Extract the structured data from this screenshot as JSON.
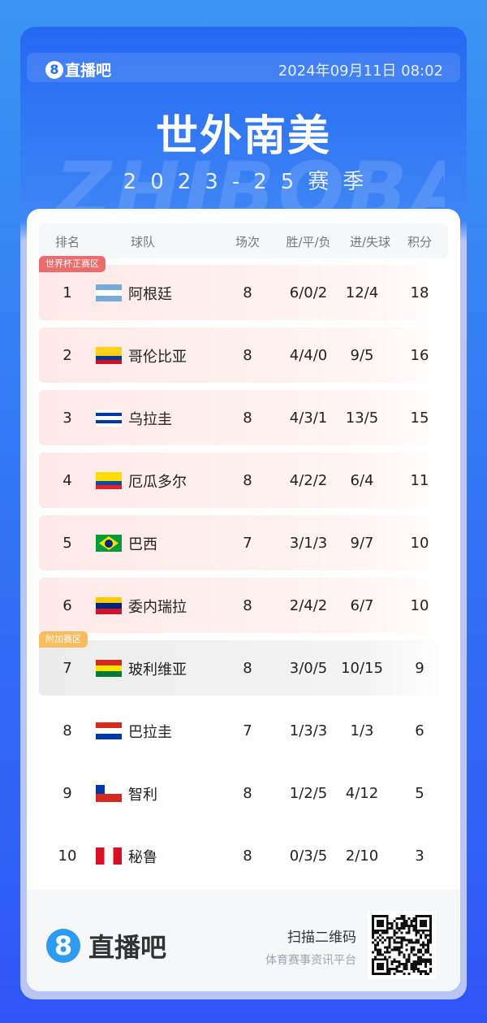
{
  "header": {
    "brand": "直播吧",
    "brand_icon": "8",
    "datetime": "2024年09月11日 08:02",
    "title": "世外南美",
    "season": "2023-25赛季",
    "watermark": "ZHIBOBA"
  },
  "table": {
    "columns": [
      "排名",
      "球队",
      "场次",
      "胜/平/负",
      "进/失球",
      "积分"
    ],
    "zones": {
      "world_cup": {
        "label": "世界杯正赛区",
        "color": "#ee6b6b"
      },
      "playoff": {
        "label": "附加赛区",
        "color": "#f9bc5c"
      }
    },
    "rows": [
      {
        "rank": "1",
        "team": "阿根廷",
        "played": "8",
        "wdl": "6/0/2",
        "goals": "12/4",
        "points": "18",
        "zone": "world_cup",
        "flag": [
          "#75aadb",
          "#ffffff",
          "#75aadb"
        ]
      },
      {
        "rank": "2",
        "team": "哥伦比亚",
        "played": "8",
        "wdl": "4/4/0",
        "goals": "9/5",
        "points": "16",
        "zone": "world_cup",
        "flag": [
          "#fcd116",
          "#fcd116",
          "#003893",
          "#ce1126"
        ]
      },
      {
        "rank": "3",
        "team": "乌拉圭",
        "played": "8",
        "wdl": "4/3/1",
        "goals": "13/5",
        "points": "15",
        "zone": "world_cup",
        "flag": [
          "#ffffff",
          "#0038a8",
          "#ffffff",
          "#0038a8",
          "#ffffff"
        ]
      },
      {
        "rank": "4",
        "team": "厄瓜多尔",
        "played": "8",
        "wdl": "4/2/2",
        "goals": "6/4",
        "points": "11",
        "zone": "world_cup",
        "flag": [
          "#ffdd00",
          "#ffdd00",
          "#034ea2",
          "#ed1c24"
        ]
      },
      {
        "rank": "5",
        "team": "巴西",
        "played": "7",
        "wdl": "3/1/3",
        "goals": "9/7",
        "points": "10",
        "zone": "world_cup",
        "flag": [
          "#009c3b"
        ]
      },
      {
        "rank": "6",
        "team": "委内瑞拉",
        "played": "8",
        "wdl": "2/4/2",
        "goals": "6/7",
        "points": "10",
        "zone": "world_cup",
        "flag": [
          "#ffcc00",
          "#00247d",
          "#cf142b"
        ]
      },
      {
        "rank": "7",
        "team": "玻利维亚",
        "played": "8",
        "wdl": "3/0/5",
        "goals": "10/15",
        "points": "9",
        "zone": "playoff",
        "flag": [
          "#d52b1e",
          "#f9e300",
          "#007934"
        ]
      },
      {
        "rank": "8",
        "team": "巴拉圭",
        "played": "7",
        "wdl": "1/3/3",
        "goals": "1/3",
        "points": "6",
        "zone": "",
        "flag": [
          "#d52b1e",
          "#ffffff",
          "#0038a8"
        ]
      },
      {
        "rank": "9",
        "team": "智利",
        "played": "8",
        "wdl": "1/2/5",
        "goals": "4/12",
        "points": "5",
        "zone": "",
        "flag": [
          "#ffffff",
          "#d52b1e"
        ]
      },
      {
        "rank": "10",
        "team": "秘鲁",
        "played": "8",
        "wdl": "0/3/5",
        "goals": "2/10",
        "points": "3",
        "zone": "",
        "flag": [
          "#d91023"
        ]
      }
    ]
  },
  "footer": {
    "brand": "直播吧",
    "brand_icon": "8",
    "scan_text": "扫描二维码",
    "slogan": "体育赛事资讯平台",
    "qr_icon": "qr-code"
  }
}
